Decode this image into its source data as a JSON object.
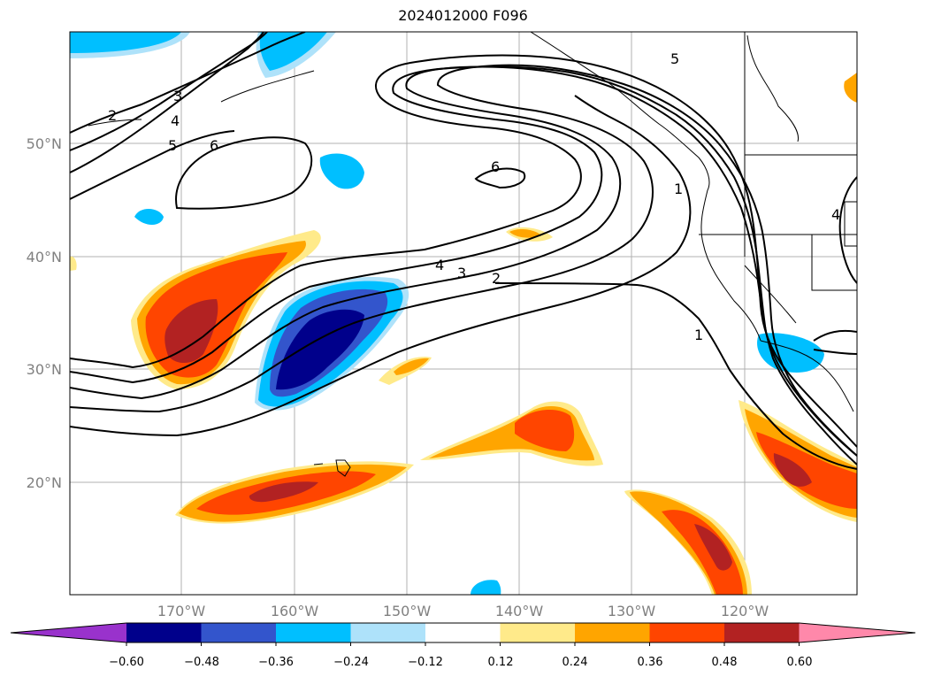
{
  "title": "2024012000 F096",
  "map": {
    "lon_labels": [
      "170°W",
      "160°W",
      "150°W",
      "140°W",
      "130°W",
      "120°W"
    ],
    "lat_labels": [
      "50°N",
      "40°N",
      "30°N",
      "20°N"
    ],
    "contour_labels": [
      {
        "id": "c2w",
        "text": "2"
      },
      {
        "id": "c3w",
        "text": "3"
      },
      {
        "id": "c4w",
        "text": "4"
      },
      {
        "id": "c5w",
        "text": "5"
      },
      {
        "id": "c6w",
        "text": "6"
      },
      {
        "id": "c6c",
        "text": "6"
      },
      {
        "id": "c4m",
        "text": "4"
      },
      {
        "id": "c3m",
        "text": "3"
      },
      {
        "id": "c2m",
        "text": "2"
      },
      {
        "id": "c1n",
        "text": "1"
      },
      {
        "id": "c1s",
        "text": "1"
      },
      {
        "id": "c5ne",
        "text": "5"
      },
      {
        "id": "c4e",
        "text": "4"
      }
    ]
  },
  "colorbar": {
    "ticks": [
      "−0.60",
      "−0.48",
      "−0.36",
      "−0.24",
      "−0.12",
      "0.12",
      "0.24",
      "0.36",
      "0.48",
      "0.60"
    ],
    "colors": [
      "#9932cc",
      "#00008b",
      "#3355cc",
      "#00bfff",
      "#aee2fa",
      "#ffffff",
      "#ffea8a",
      "#ffa500",
      "#ff4500",
      "#b22222",
      "#ff88aa"
    ]
  }
}
